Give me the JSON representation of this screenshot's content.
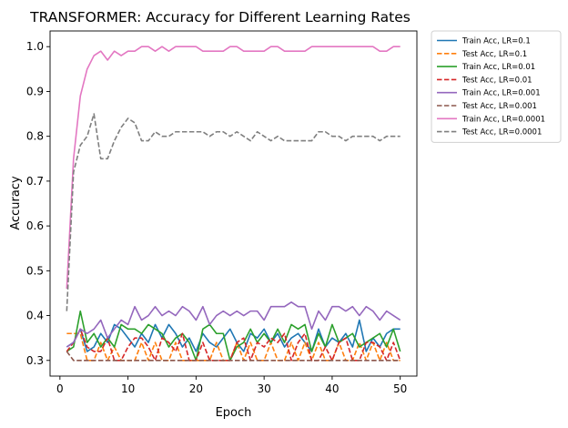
{
  "chart_data": {
    "type": "line",
    "title": "TRANSFORMER: Accuracy for Different Learning Rates",
    "xlabel": "Epoch",
    "ylabel": "Accuracy",
    "xlim": [
      -1.45,
      52.45
    ],
    "ylim": [
      0.265,
      1.035
    ],
    "xticks": [
      0,
      10,
      20,
      30,
      40,
      50
    ],
    "yticks": [
      0.3,
      0.4,
      0.5,
      0.6,
      0.7,
      0.8,
      0.9,
      1.0
    ],
    "ytick_labels": [
      "0.3",
      "0.4",
      "0.5",
      "0.6",
      "0.7",
      "0.8",
      "0.9",
      "1.0"
    ],
    "grid": false,
    "legend_position": "outside-upper-right",
    "x": [
      1,
      2,
      3,
      4,
      5,
      6,
      7,
      8,
      9,
      10,
      11,
      12,
      13,
      14,
      15,
      16,
      17,
      18,
      19,
      20,
      21,
      22,
      23,
      24,
      25,
      26,
      27,
      28,
      29,
      30,
      31,
      32,
      33,
      34,
      35,
      36,
      37,
      38,
      39,
      40,
      41,
      42,
      43,
      44,
      45,
      46,
      47,
      48,
      49,
      50
    ],
    "series": [
      {
        "name": "Train Acc, LR=0.1",
        "color": "#1f77b4",
        "dash": "solid",
        "values": [
          0.33,
          0.34,
          0.37,
          0.32,
          0.33,
          0.36,
          0.34,
          0.38,
          0.37,
          0.35,
          0.33,
          0.36,
          0.34,
          0.38,
          0.35,
          0.38,
          0.36,
          0.33,
          0.35,
          0.32,
          0.36,
          0.34,
          0.33,
          0.35,
          0.37,
          0.34,
          0.32,
          0.36,
          0.35,
          0.37,
          0.34,
          0.36,
          0.33,
          0.35,
          0.36,
          0.34,
          0.32,
          0.37,
          0.33,
          0.35,
          0.34,
          0.36,
          0.33,
          0.39,
          0.32,
          0.35,
          0.33,
          0.36,
          0.37,
          0.37
        ]
      },
      {
        "name": "Test Acc, LR=0.1",
        "color": "#ff7f0e",
        "dash": "dashed",
        "values": [
          0.36,
          0.36,
          0.36,
          0.3,
          0.3,
          0.34,
          0.3,
          0.33,
          0.3,
          0.3,
          0.3,
          0.34,
          0.3,
          0.34,
          0.3,
          0.3,
          0.34,
          0.3,
          0.3,
          0.3,
          0.3,
          0.3,
          0.34,
          0.3,
          0.3,
          0.34,
          0.3,
          0.34,
          0.3,
          0.3,
          0.34,
          0.3,
          0.3,
          0.34,
          0.3,
          0.34,
          0.3,
          0.34,
          0.3,
          0.3,
          0.34,
          0.3,
          0.3,
          0.34,
          0.3,
          0.34,
          0.3,
          0.34,
          0.3,
          0.3
        ]
      },
      {
        "name": "Train Acc, LR=0.01",
        "color": "#2ca02c",
        "dash": "solid",
        "values": [
          0.32,
          0.33,
          0.41,
          0.34,
          0.36,
          0.33,
          0.35,
          0.33,
          0.38,
          0.37,
          0.37,
          0.36,
          0.38,
          0.37,
          0.36,
          0.33,
          0.35,
          0.36,
          0.34,
          0.3,
          0.37,
          0.38,
          0.36,
          0.36,
          0.3,
          0.33,
          0.34,
          0.37,
          0.34,
          0.36,
          0.34,
          0.37,
          0.34,
          0.38,
          0.37,
          0.38,
          0.32,
          0.36,
          0.33,
          0.38,
          0.34,
          0.35,
          0.36,
          0.33,
          0.34,
          0.35,
          0.36,
          0.33,
          0.37,
          0.32
        ]
      },
      {
        "name": "Test Acc, LR=0.01",
        "color": "#d62728",
        "dash": "dashed",
        "values": [
          0.32,
          0.34,
          0.37,
          0.33,
          0.32,
          0.32,
          0.35,
          0.3,
          0.3,
          0.33,
          0.35,
          0.35,
          0.33,
          0.3,
          0.35,
          0.34,
          0.32,
          0.36,
          0.3,
          0.3,
          0.34,
          0.3,
          0.3,
          0.3,
          0.3,
          0.34,
          0.35,
          0.3,
          0.34,
          0.33,
          0.35,
          0.34,
          0.36,
          0.3,
          0.34,
          0.36,
          0.3,
          0.3,
          0.33,
          0.3,
          0.34,
          0.35,
          0.3,
          0.3,
          0.34,
          0.34,
          0.33,
          0.3,
          0.34,
          0.3
        ]
      },
      {
        "name": "Train Acc, LR=0.001",
        "color": "#9467bd",
        "dash": "solid",
        "values": [
          0.33,
          0.34,
          0.37,
          0.36,
          0.37,
          0.39,
          0.35,
          0.37,
          0.39,
          0.38,
          0.42,
          0.39,
          0.4,
          0.42,
          0.4,
          0.41,
          0.4,
          0.42,
          0.41,
          0.39,
          0.42,
          0.38,
          0.4,
          0.41,
          0.4,
          0.41,
          0.4,
          0.41,
          0.41,
          0.39,
          0.42,
          0.42,
          0.42,
          0.43,
          0.42,
          0.42,
          0.37,
          0.41,
          0.39,
          0.42,
          0.42,
          0.41,
          0.42,
          0.4,
          0.42,
          0.41,
          0.39,
          0.41,
          0.4,
          0.39
        ]
      },
      {
        "name": "Test Acc, LR=0.001",
        "color": "#8c564b",
        "dash": "dashed",
        "values": [
          0.32,
          0.3,
          0.3,
          0.3,
          0.3,
          0.3,
          0.3,
          0.3,
          0.3,
          0.3,
          0.3,
          0.3,
          0.3,
          0.3,
          0.3,
          0.3,
          0.3,
          0.3,
          0.3,
          0.3,
          0.3,
          0.3,
          0.3,
          0.3,
          0.3,
          0.3,
          0.3,
          0.3,
          0.3,
          0.3,
          0.3,
          0.3,
          0.3,
          0.3,
          0.3,
          0.3,
          0.3,
          0.3,
          0.3,
          0.3,
          0.3,
          0.3,
          0.3,
          0.3,
          0.3,
          0.3,
          0.3,
          0.3,
          0.3,
          0.3
        ]
      },
      {
        "name": "Train Acc, LR=0.0001",
        "color": "#e377c2",
        "dash": "solid",
        "values": [
          0.46,
          0.75,
          0.89,
          0.95,
          0.98,
          0.99,
          0.97,
          0.99,
          0.98,
          0.99,
          0.99,
          1.0,
          1.0,
          0.99,
          1.0,
          0.99,
          1.0,
          1.0,
          1.0,
          1.0,
          0.99,
          0.99,
          0.99,
          0.99,
          1.0,
          1.0,
          0.99,
          0.99,
          0.99,
          0.99,
          1.0,
          1.0,
          0.99,
          0.99,
          0.99,
          0.99,
          1.0,
          1.0,
          1.0,
          1.0,
          1.0,
          1.0,
          1.0,
          1.0,
          1.0,
          1.0,
          0.99,
          0.99,
          1.0,
          1.0
        ]
      },
      {
        "name": "Test Acc, LR=0.0001",
        "color": "#7f7f7f",
        "dash": "dashed",
        "values": [
          0.41,
          0.72,
          0.78,
          0.8,
          0.85,
          0.75,
          0.75,
          0.79,
          0.82,
          0.84,
          0.83,
          0.79,
          0.79,
          0.81,
          0.8,
          0.8,
          0.81,
          0.81,
          0.81,
          0.81,
          0.81,
          0.8,
          0.81,
          0.81,
          0.8,
          0.81,
          0.8,
          0.79,
          0.81,
          0.8,
          0.79,
          0.8,
          0.79,
          0.79,
          0.79,
          0.79,
          0.79,
          0.81,
          0.81,
          0.8,
          0.8,
          0.79,
          0.8,
          0.8,
          0.8,
          0.8,
          0.79,
          0.8,
          0.8,
          0.8
        ]
      }
    ]
  }
}
